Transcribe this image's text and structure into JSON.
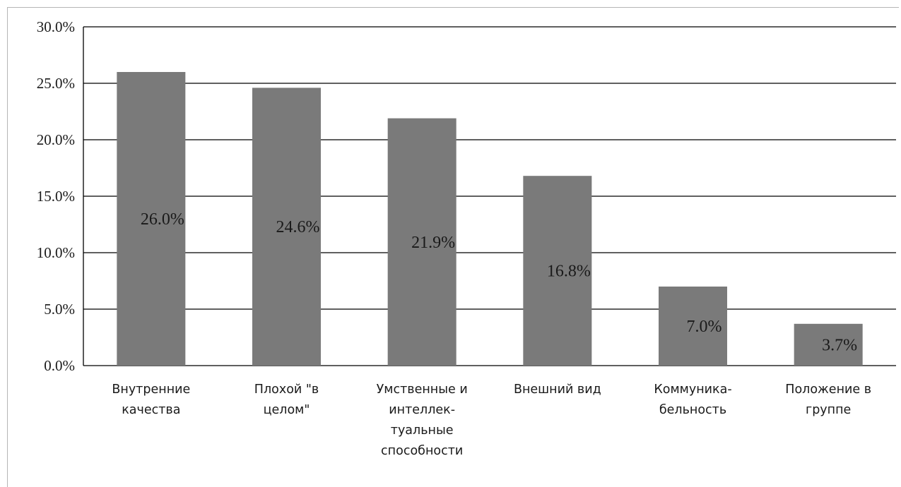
{
  "chart_data": {
    "type": "bar",
    "categories": [
      [
        "Внутренние",
        "качества"
      ],
      [
        "Плохой \"в",
        "целом\""
      ],
      [
        "Умственные и",
        "интеллек-",
        "туальные",
        "способности"
      ],
      [
        "Внешний вид"
      ],
      [
        "Коммуника-",
        "бельность"
      ],
      [
        "Положение в",
        "группе"
      ]
    ],
    "values": [
      26.0,
      24.6,
      21.9,
      16.8,
      7.0,
      3.7
    ],
    "data_labels": [
      "26.0%",
      "24.6%",
      "21.9%",
      "16.8%",
      "7.0%",
      "3.7%"
    ],
    "y_ticks": [
      "0.0%",
      "5.0%",
      "10.0%",
      "15.0%",
      "20.0%",
      "25.0%",
      "30.0%"
    ],
    "ylim": [
      0,
      30
    ],
    "grid": true,
    "colors": {
      "bar": "#7a7a7a",
      "grid": "#000000"
    }
  }
}
